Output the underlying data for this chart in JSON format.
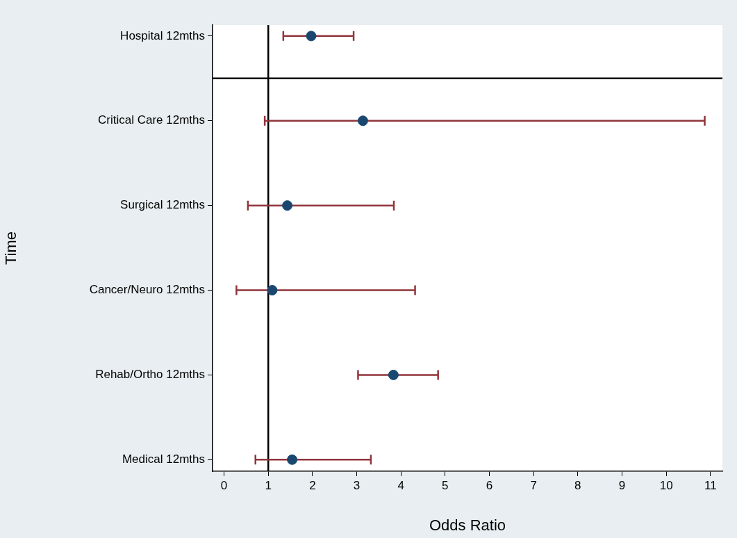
{
  "chart_data": {
    "type": "scatter",
    "orientation": "horizontal",
    "xlabel": "Odds Ratio",
    "ylabel": "Time",
    "categories": [
      "Hospital 12mths",
      "Critical Care 12mths",
      "Surgical 12mths",
      "Cancer/Neuro 12mths",
      "Rehab/Ortho 12mths",
      "Medical 12mths"
    ],
    "values": [
      1.97,
      3.14,
      1.43,
      1.09,
      3.83,
      1.54
    ],
    "errors": [
      [
        1.34,
        2.93
      ],
      [
        0.92,
        10.87
      ],
      [
        0.54,
        3.84
      ],
      [
        0.28,
        4.32
      ],
      [
        3.03,
        4.84
      ],
      [
        0.71,
        3.32
      ]
    ],
    "color": "#1a476f",
    "marker": "circle",
    "xlim": [
      -0.26,
      11.27
    ],
    "xticks": [
      0,
      1,
      2,
      3,
      4,
      5,
      6,
      7,
      8,
      9,
      10,
      11
    ],
    "ref_lines": [
      {
        "axis": "x",
        "value": 1,
        "color": "#000000"
      }
    ]
  }
}
